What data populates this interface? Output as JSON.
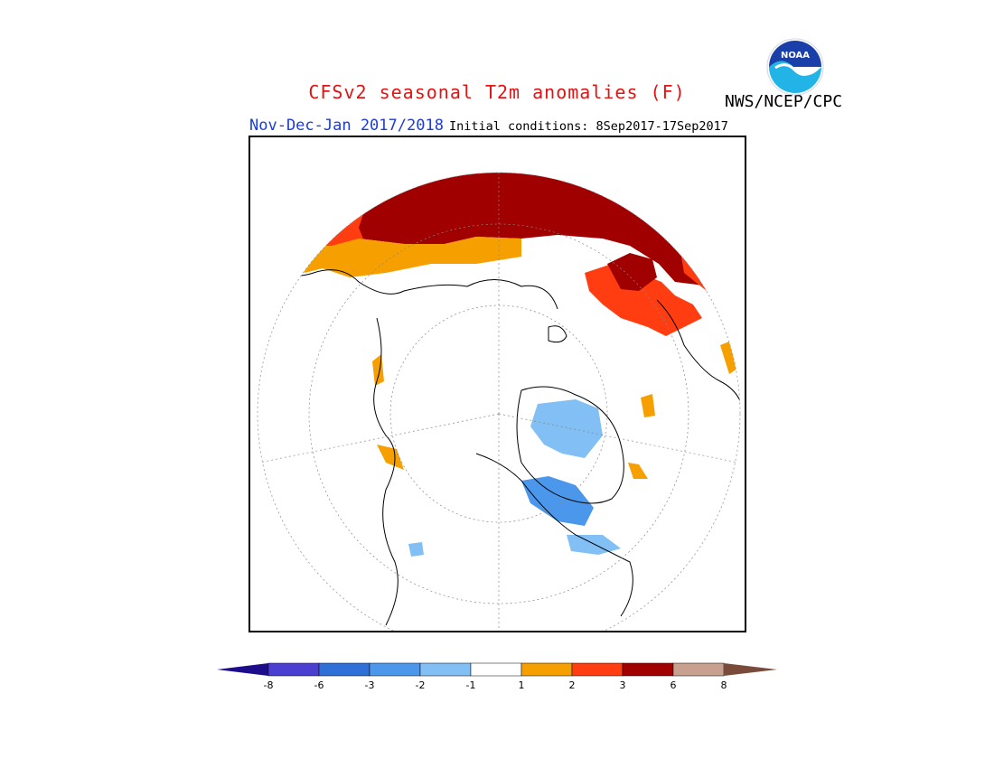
{
  "header": {
    "title": "CFSv2 seasonal T2m anomalies (F)",
    "agency": "NWS/NCEP/CPC",
    "period": "Nov-Dec-Jan 2017/2018",
    "initial_conditions": "Initial conditions: 8Sep2017-17Sep2017"
  },
  "logo": {
    "name": "noaa-logo",
    "text": "NOAA"
  },
  "legend": {
    "labels": [
      "-8",
      "-6",
      "-3",
      "-2",
      "-1",
      "1",
      "2",
      "3",
      "6",
      "8"
    ],
    "colors": [
      "#1e0d8a",
      "#4a3fd0",
      "#2f6fd8",
      "#4a97ec",
      "#82bff4",
      "#ffffff",
      "#f5a000",
      "#ff3d10",
      "#a00000",
      "#c8a08f",
      "#7a4a3a"
    ]
  },
  "colors": {
    "title": "#e01414",
    "period": "#1e3cd6",
    "strong_warm": "#a00000",
    "warm": "#ff3d10",
    "mild_warm": "#f5a000",
    "cool": "#82bff4",
    "colder": "#4a97ec"
  }
}
